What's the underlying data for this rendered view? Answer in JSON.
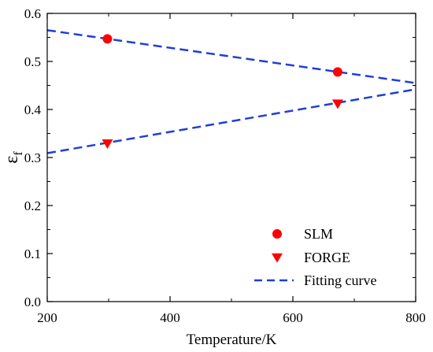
{
  "chart_data": {
    "type": "scatter",
    "xlabel": "Temperature/K",
    "ylabel": {
      "base": "ε",
      "sub": "f"
    },
    "xlim": [
      200,
      800
    ],
    "ylim": [
      0.0,
      0.6
    ],
    "xticks": [
      "200",
      "400",
      "600",
      "800"
    ],
    "yticks": [
      "0.0",
      "0.1",
      "0.2",
      "0.3",
      "0.4",
      "0.5",
      "0.6"
    ],
    "grid": false,
    "legend_position": "bottom-right",
    "series": [
      {
        "name": "SLM",
        "marker": "circle",
        "color": "#ff0000",
        "points": [
          {
            "x": 298,
            "y": 0.547
          },
          {
            "x": 673,
            "y": 0.478
          }
        ]
      },
      {
        "name": "FORGE",
        "marker": "triangle-down",
        "color": "#ff0000",
        "points": [
          {
            "x": 298,
            "y": 0.329
          },
          {
            "x": 673,
            "y": 0.412
          }
        ]
      }
    ],
    "fit_lines": [
      {
        "of": "SLM",
        "x": [
          200,
          800
        ],
        "y": [
          0.565,
          0.455
        ]
      },
      {
        "of": "FORGE",
        "x": [
          200,
          800
        ],
        "y": [
          0.309,
          0.442
        ]
      }
    ],
    "fit_legend": {
      "label": "Fitting curve",
      "color": "#1f3fd6",
      "style": "dashed"
    }
  }
}
